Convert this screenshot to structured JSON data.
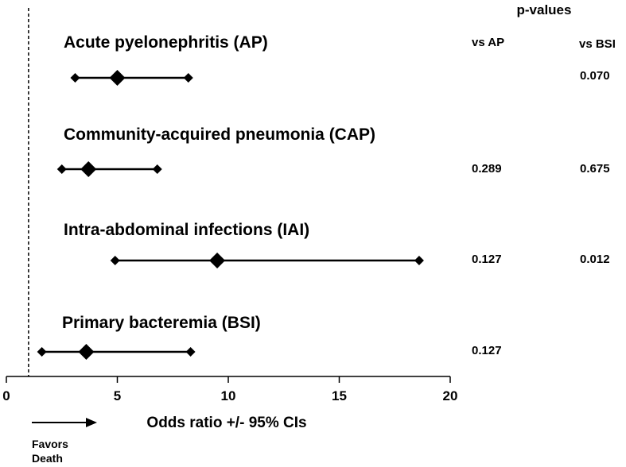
{
  "chart_data": {
    "type": "forest",
    "xlabel": "Odds ratio +/- 95% CIs",
    "xlim": [
      0,
      20
    ],
    "xticks": [
      0,
      5,
      10,
      15,
      20
    ],
    "reference_line": 1,
    "favors_label": [
      "Favors",
      "Death"
    ],
    "pvalues_title": "p-values",
    "pvalue_columns": [
      "vs AP",
      "vs BSI"
    ],
    "rows": [
      {
        "name": "Acute pyelonephritis (AP)",
        "or": 5.0,
        "ci_low": 3.1,
        "ci_high": 8.2,
        "p_vs_ap": "",
        "p_vs_bsi": "0.070"
      },
      {
        "name": "Community-acquired pneumonia (CAP)",
        "or": 3.7,
        "ci_low": 2.5,
        "ci_high": 6.8,
        "p_vs_ap": "0.289",
        "p_vs_bsi": "0.675"
      },
      {
        "name": "Intra-abdominal infections (IAI)",
        "or": 9.5,
        "ci_low": 4.9,
        "ci_high": 18.6,
        "p_vs_ap": "0.127",
        "p_vs_bsi": "0.012"
      },
      {
        "name": "Primary bacteremia (BSI)",
        "or": 3.6,
        "ci_low": 1.6,
        "ci_high": 8.3,
        "p_vs_ap": "0.127",
        "p_vs_bsi": ""
      }
    ],
    "color": "#000000"
  }
}
